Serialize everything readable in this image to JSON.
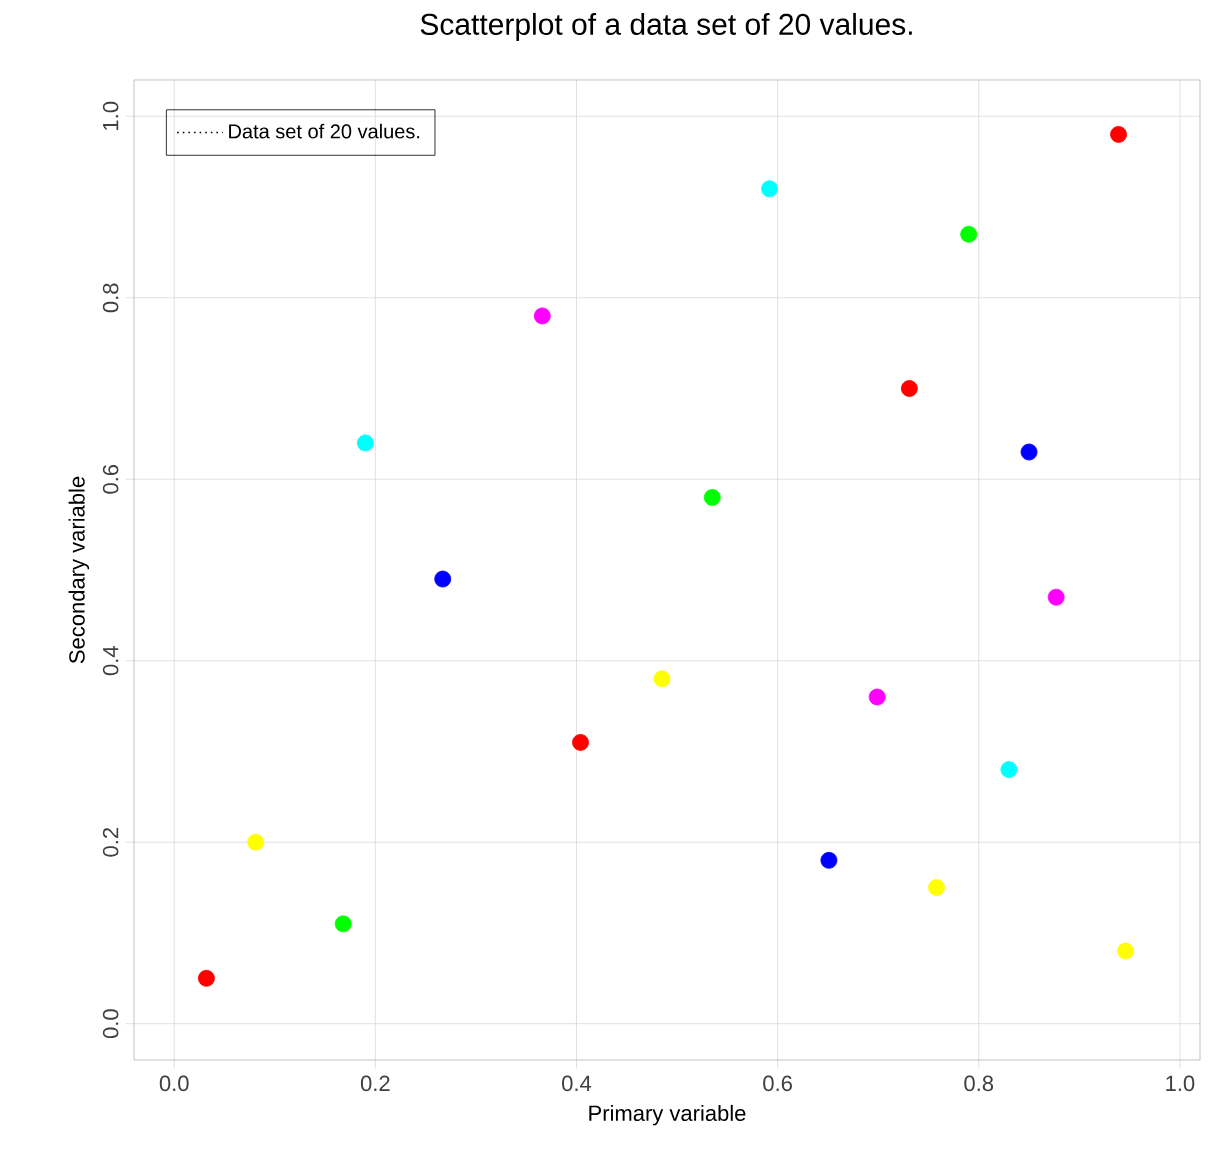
{
  "chart_data": {
    "type": "scatter",
    "title": "Scatterplot of a data set of 20 values.",
    "xlabel": "Primary variable",
    "ylabel": "Secondary variable",
    "x": [
      0.032,
      0.081,
      0.168,
      0.19,
      0.267,
      0.366,
      0.404,
      0.485,
      0.535,
      0.592,
      0.651,
      0.699,
      0.731,
      0.758,
      0.79,
      0.83,
      0.85,
      0.877,
      0.939,
      0.946
    ],
    "series": [
      {
        "name": "Data set of 20 values.",
        "values": [
          0.05,
          0.2,
          0.11,
          0.64,
          0.49,
          0.78,
          0.31,
          0.38,
          0.58,
          0.92,
          0.18,
          0.36,
          0.7,
          0.15,
          0.87,
          0.28,
          0.63,
          0.47,
          0.98,
          0.08
        ],
        "colors": [
          "#ff0000",
          "#ffff00",
          "#00ff00",
          "#00ffff",
          "#0000ff",
          "#ff00ff",
          "#ff0000",
          "#ffff00",
          "#00ff00",
          "#00ffff",
          "#0000ff",
          "#ff00ff",
          "#ff0000",
          "#ffff00",
          "#00ff00",
          "#00ffff",
          "#0000ff",
          "#ff00ff",
          "#ff0000",
          "#ffff00"
        ]
      }
    ],
    "xlim": [
      -0.04,
      1.02
    ],
    "ylim": [
      -0.04,
      1.04
    ],
    "xticks": [
      {
        "value": 0,
        "label": "0.0"
      },
      0.2,
      0.4,
      0.6,
      0.8,
      {
        "value": 1,
        "label": "1.0"
      }
    ],
    "yticks": [
      {
        "value": 0,
        "label": "0.0"
      },
      0.2,
      0.4,
      0.6,
      0.8,
      {
        "value": 1,
        "label": "1.0"
      }
    ],
    "grid": true,
    "legend": "top left"
  }
}
